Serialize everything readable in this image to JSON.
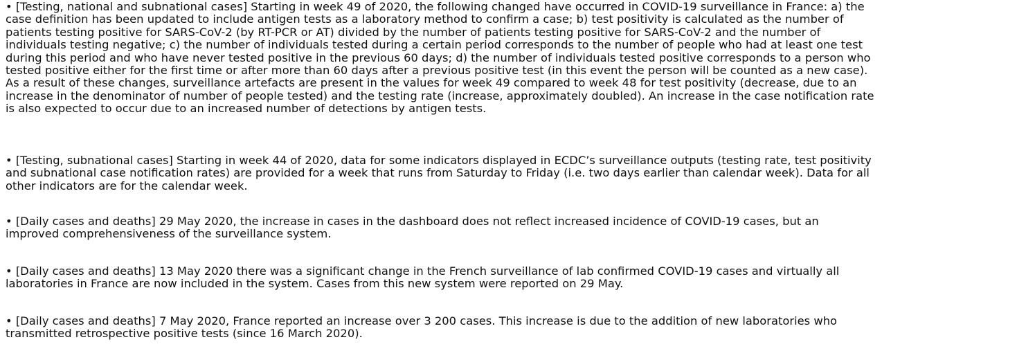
{
  "paragraphs": [
    {
      "lines": [
        "• [Testing, national and subnational cases] Starting in week 49 of 2020, the following changed have occurred in COVID-19 surveillance in France: a) the",
        "case definition has been updated to include antigen tests as a laboratory method to confirm a case; b) test positivity is calculated as the number of",
        "patients testing positive for SARS-CoV-2 (by RT-PCR or AT) divided by the number of patients testing positive for SARS-CoV-2 and the number of",
        "individuals testing negative; c) the number of individuals tested during a certain period corresponds to the number of people who had at least one test",
        "during this period and who have never tested positive in the previous 60 days; d) the number of individuals tested positive corresponds to a person who",
        "tested positive either for the first time or after more than 60 days after a previous positive test (in this event the person will be counted as a new case).",
        "As a result of these changes, surveillance artefacts are present in the values for week 49 compared to week 48 for test positivity (decrease, due to an",
        "increase in the denominator of number of people tested) and the testing rate (increase, approximately doubled). An increase in the case notification rate",
        "is also expected to occur due to an increased number of detections by antigen tests."
      ]
    },
    {
      "lines": [
        "• [Testing, subnational cases] Starting in week 44 of 2020, data for some indicators displayed in ECDC’s surveillance outputs (testing rate, test positivity",
        "and subnational case notification rates) are provided for a week that runs from Saturday to Friday (i.e. two days earlier than calendar week). Data for all",
        "other indicators are for the calendar week."
      ]
    },
    {
      "lines": [
        "• [Daily cases and deaths] 29 May 2020, the increase in cases in the dashboard does not reflect increased incidence of COVID-19 cases, but an",
        "improved comprehensiveness of the surveillance system."
      ]
    },
    {
      "lines": [
        "• [Daily cases and deaths] 13 May 2020 there was a significant change in the French surveillance of lab confirmed COVID-19 cases and virtually all",
        "laboratories in France are now included in the system. Cases from this new system were reported on 29 May."
      ]
    },
    {
      "lines": [
        "• [Daily cases and deaths] 7 May 2020, France reported an increase over 3 200 cases. This increase is due to the addition of new laboratories who",
        "transmitted retrospective positive tests (since 16 March 2020)."
      ]
    }
  ]
}
